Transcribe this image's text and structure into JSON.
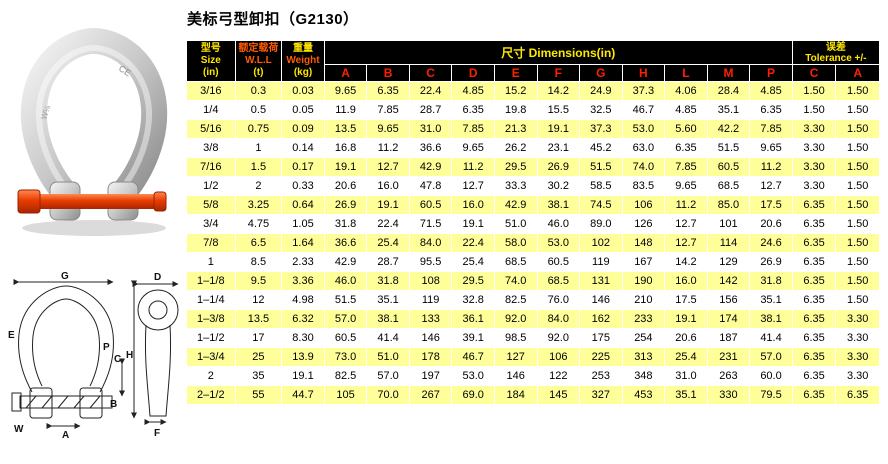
{
  "title": "美标弓型卸扣（G2130）",
  "colors": {
    "header_bg": "#000000",
    "header_yellow": "#ffe800",
    "header_red": "#ff2000",
    "header_orange": "#ff5a00",
    "row_yellow": "#ffff99"
  },
  "photo": {
    "markings": [
      "CE",
      "W⅛"
    ]
  },
  "drawing": {
    "front_labels": [
      "G",
      "E",
      "P",
      "C",
      "H",
      "B",
      "A",
      "W"
    ],
    "side_labels": [
      "D",
      "F"
    ]
  },
  "table": {
    "header": {
      "size": {
        "l1": "型号",
        "l2": "Size",
        "l3": "(in)"
      },
      "wll": {
        "l1": "额定载荷",
        "l2": "W.L.L",
        "l3": "(t)"
      },
      "weight": {
        "l1": "重量",
        "l2": "Weight",
        "l3": "(kg)"
      },
      "dims": "尺寸  Dimensions(in)",
      "dim_letters": [
        "A",
        "B",
        "C",
        "D",
        "E",
        "F",
        "G",
        "H",
        "L",
        "M",
        "P"
      ],
      "tol_l1": "误差",
      "tol_l2": "Tolerance +/-",
      "tol_letters": [
        "C",
        "A"
      ]
    },
    "rows": [
      [
        "3/16",
        "0.3",
        "0.03",
        "9.65",
        "6.35",
        "22.4",
        "4.85",
        "15.2",
        "14.2",
        "24.9",
        "37.3",
        "4.06",
        "28.4",
        "4.85",
        "1.50",
        "1.50"
      ],
      [
        "1/4",
        "0.5",
        "0.05",
        "11.9",
        "7.85",
        "28.7",
        "6.35",
        "19.8",
        "15.5",
        "32.5",
        "46.7",
        "4.85",
        "35.1",
        "6.35",
        "1.50",
        "1.50"
      ],
      [
        "5/16",
        "0.75",
        "0.09",
        "13.5",
        "9.65",
        "31.0",
        "7.85",
        "21.3",
        "19.1",
        "37.3",
        "53.0",
        "5.60",
        "42.2",
        "7.85",
        "3.30",
        "1.50"
      ],
      [
        "3/8",
        "1",
        "0.14",
        "16.8",
        "11.2",
        "36.6",
        "9.65",
        "26.2",
        "23.1",
        "45.2",
        "63.0",
        "6.35",
        "51.5",
        "9.65",
        "3.30",
        "1.50"
      ],
      [
        "7/16",
        "1.5",
        "0.17",
        "19.1",
        "12.7",
        "42.9",
        "11.2",
        "29.5",
        "26.9",
        "51.5",
        "74.0",
        "7.85",
        "60.5",
        "11.2",
        "3.30",
        "1.50"
      ],
      [
        "1/2",
        "2",
        "0.33",
        "20.6",
        "16.0",
        "47.8",
        "12.7",
        "33.3",
        "30.2",
        "58.5",
        "83.5",
        "9.65",
        "68.5",
        "12.7",
        "3.30",
        "1.50"
      ],
      [
        "5/8",
        "3.25",
        "0.64",
        "26.9",
        "19.1",
        "60.5",
        "16.0",
        "42.9",
        "38.1",
        "74.5",
        "106",
        "11.2",
        "85.0",
        "17.5",
        "6.35",
        "1.50"
      ],
      [
        "3/4",
        "4.75",
        "1.05",
        "31.8",
        "22.4",
        "71.5",
        "19.1",
        "51.0",
        "46.0",
        "89.0",
        "126",
        "12.7",
        "101",
        "20.6",
        "6.35",
        "1.50"
      ],
      [
        "7/8",
        "6.5",
        "1.64",
        "36.6",
        "25.4",
        "84.0",
        "22.4",
        "58.0",
        "53.0",
        "102",
        "148",
        "12.7",
        "114",
        "24.6",
        "6.35",
        "1.50"
      ],
      [
        "1",
        "8.5",
        "2.33",
        "42.9",
        "28.7",
        "95.5",
        "25.4",
        "68.5",
        "60.5",
        "119",
        "167",
        "14.2",
        "129",
        "26.9",
        "6.35",
        "1.50"
      ],
      [
        "1–1/8",
        "9.5",
        "3.36",
        "46.0",
        "31.8",
        "108",
        "29.5",
        "74.0",
        "68.5",
        "131",
        "190",
        "16.0",
        "142",
        "31.8",
        "6.35",
        "1.50"
      ],
      [
        "1–1/4",
        "12",
        "4.98",
        "51.5",
        "35.1",
        "119",
        "32.8",
        "82.5",
        "76.0",
        "146",
        "210",
        "17.5",
        "156",
        "35.1",
        "6.35",
        "1.50"
      ],
      [
        "1–3/8",
        "13.5",
        "6.32",
        "57.0",
        "38.1",
        "133",
        "36.1",
        "92.0",
        "84.0",
        "162",
        "233",
        "19.1",
        "174",
        "38.1",
        "6.35",
        "3.30"
      ],
      [
        "1–1/2",
        "17",
        "8.30",
        "60.5",
        "41.4",
        "146",
        "39.1",
        "98.5",
        "92.0",
        "175",
        "254",
        "20.6",
        "187",
        "41.4",
        "6.35",
        "3.30"
      ],
      [
        "1–3/4",
        "25",
        "13.9",
        "73.0",
        "51.0",
        "178",
        "46.7",
        "127",
        "106",
        "225",
        "313",
        "25.4",
        "231",
        "57.0",
        "6.35",
        "3.30"
      ],
      [
        "2",
        "35",
        "19.1",
        "82.5",
        "57.0",
        "197",
        "53.0",
        "146",
        "122",
        "253",
        "348",
        "31.0",
        "263",
        "60.0",
        "6.35",
        "3.30"
      ],
      [
        "2–1/2",
        "55",
        "44.7",
        "105",
        "70.0",
        "267",
        "69.0",
        "184",
        "145",
        "327",
        "453",
        "35.1",
        "330",
        "79.5",
        "6.35",
        "6.35"
      ]
    ]
  }
}
